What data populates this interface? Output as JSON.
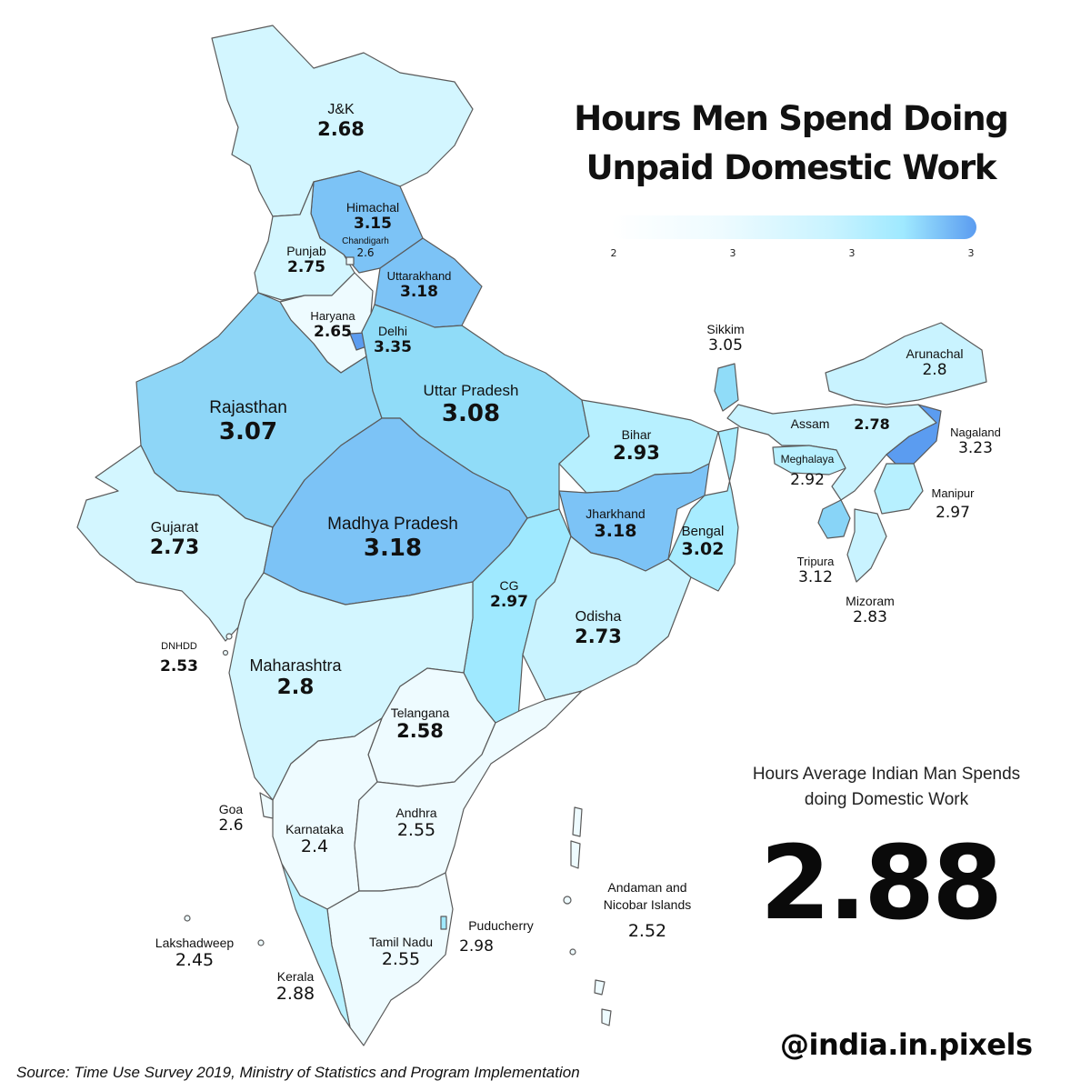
{
  "title": {
    "line1": "Hours Men Spend Doing",
    "line2": "Unpaid Domestic Work"
  },
  "legend": {
    "ticks": [
      "2",
      "3",
      "3",
      "3"
    ]
  },
  "colors": {
    "lowest": "#eefbff",
    "low": "#d3f6ff",
    "mid": "#9fe9ff",
    "high": "#7cc3f6",
    "highest": "#5b9cf0",
    "border": "#5a5a5a"
  },
  "states": [
    {
      "id": "jk",
      "name": "J&K",
      "value": "2.68"
    },
    {
      "id": "himachal",
      "name": "Himachal",
      "value": "3.15"
    },
    {
      "id": "chandigarh",
      "name": "Chandigarh",
      "value": "2.6"
    },
    {
      "id": "punjab",
      "name": "Punjab",
      "value": "2.75"
    },
    {
      "id": "uttarakhand",
      "name": "Uttarakhand",
      "value": "3.18"
    },
    {
      "id": "haryana",
      "name": "Haryana",
      "value": "2.65"
    },
    {
      "id": "delhi",
      "name": "Delhi",
      "value": "3.35"
    },
    {
      "id": "rajasthan",
      "name": "Rajasthan",
      "value": "3.07"
    },
    {
      "id": "uttar-pradesh",
      "name": "Uttar Pradesh",
      "value": "3.08"
    },
    {
      "id": "bihar",
      "name": "Bihar",
      "value": "2.93"
    },
    {
      "id": "sikkim",
      "name": "Sikkim",
      "value": "3.05"
    },
    {
      "id": "arunachal",
      "name": "Arunachal",
      "value": "2.8"
    },
    {
      "id": "assam",
      "name": "Assam",
      "value": "2.78"
    },
    {
      "id": "nagaland",
      "name": "Nagaland",
      "value": "3.23"
    },
    {
      "id": "meghalaya",
      "name": "Meghalaya",
      "value": "2.92"
    },
    {
      "id": "manipur",
      "name": "Manipur",
      "value": "2.97"
    },
    {
      "id": "tripura",
      "name": "Tripura",
      "value": "3.12"
    },
    {
      "id": "mizoram",
      "name": "Mizoram",
      "value": "2.83"
    },
    {
      "id": "gujarat",
      "name": "Gujarat",
      "value": "2.73"
    },
    {
      "id": "madhya-pradesh",
      "name": "Madhya Pradesh",
      "value": "3.18"
    },
    {
      "id": "jharkhand",
      "name": "Jharkhand",
      "value": "3.18"
    },
    {
      "id": "bengal",
      "name": "Bengal",
      "value": "3.02"
    },
    {
      "id": "cg",
      "name": "CG",
      "value": "2.97"
    },
    {
      "id": "odisha",
      "name": "Odisha",
      "value": "2.73"
    },
    {
      "id": "dnhdd",
      "name": "DNHDD",
      "value": "2.53"
    },
    {
      "id": "maharashtra",
      "name": "Maharashtra",
      "value": "2.8"
    },
    {
      "id": "telangana",
      "name": "Telangana",
      "value": "2.58"
    },
    {
      "id": "goa",
      "name": "Goa",
      "value": "2.6"
    },
    {
      "id": "karnataka",
      "name": "Karnataka",
      "value": "2.4"
    },
    {
      "id": "andhra",
      "name": "Andhra",
      "value": "2.55"
    },
    {
      "id": "andaman",
      "name": "Andaman and Nicobar Islands",
      "value": "2.52"
    },
    {
      "id": "puducherry",
      "name": "Puducherry",
      "value": "2.98"
    },
    {
      "id": "tamil-nadu",
      "name": "Tamil Nadu",
      "value": "2.55"
    },
    {
      "id": "lakshadweep",
      "name": "Lakshadweep",
      "value": "2.45"
    },
    {
      "id": "kerala",
      "name": "Kerala",
      "value": "2.88"
    }
  ],
  "stat": {
    "label": "Hours Average Indian Man Spends doing Domestic Work",
    "value": "2.88"
  },
  "handle": "@india.in.pixels",
  "source": "Source: Time Use Survey 2019, Ministry of Statistics and Program Implementation"
}
